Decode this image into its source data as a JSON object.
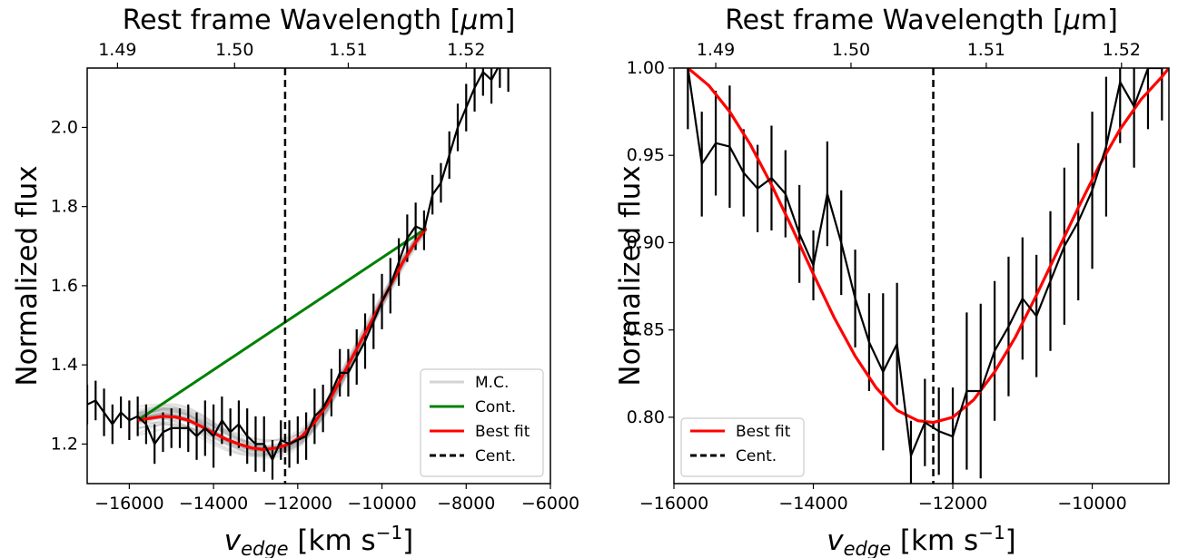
{
  "chart_data": [
    {
      "type": "line",
      "xlabel_main": "v",
      "xlabel_sub": "edge",
      "xlabel_unit": " [km s",
      "xlabel_exp": "−1",
      "xlabel_close": "]",
      "ylabel": "Normalized flux",
      "top_xlabel_text": "Rest frame Wavelength [",
      "top_xlabel_mu": "μ",
      "top_xlabel_end": "m]",
      "xlim": [
        -17000,
        -6000
      ],
      "ylim": [
        1.1,
        2.15
      ],
      "xticks": [
        -16000,
        -14000,
        -12000,
        -10000,
        -8000,
        -6000
      ],
      "xtick_labels": [
        "−16000",
        "−14000",
        "−12000",
        "−10000",
        "−8000",
        "−6000"
      ],
      "yticks": [
        1.2,
        1.4,
        1.6,
        1.8,
        2.0
      ],
      "ytick_labels": [
        "1.2",
        "1.4",
        "1.6",
        "1.8",
        "2.0"
      ],
      "top_xticks": [
        -16280,
        -14300,
        -12320,
        -10340,
        -8360
      ],
      "top_xtick_labels": [
        "1.49",
        "1.50",
        "1.51",
        "1.52"
      ],
      "top_xtick_label_index": [
        0,
        1,
        2,
        3
      ],
      "top_label_positions": [
        -16280,
        -13500,
        -10800,
        -8000
      ],
      "centroid": -12300,
      "data": {
        "x": [
          -17000,
          -16800,
          -16600,
          -16400,
          -16200,
          -16000,
          -15800,
          -15600,
          -15400,
          -15200,
          -15000,
          -14800,
          -14600,
          -14400,
          -14200,
          -14000,
          -13800,
          -13600,
          -13400,
          -13200,
          -13000,
          -12800,
          -12600,
          -12400,
          -12200,
          -12000,
          -11800,
          -11600,
          -11400,
          -11200,
          -11000,
          -10800,
          -10600,
          -10400,
          -10200,
          -10000,
          -9800,
          -9600,
          -9400,
          -9200,
          -9000,
          -8800,
          -8600,
          -8400,
          -8200,
          -8000,
          -7800,
          -7600,
          -7400,
          -7200,
          -7000
        ],
        "y": [
          1.3,
          1.31,
          1.28,
          1.25,
          1.28,
          1.26,
          1.27,
          1.25,
          1.2,
          1.23,
          1.24,
          1.24,
          1.24,
          1.22,
          1.24,
          1.22,
          1.26,
          1.23,
          1.25,
          1.22,
          1.2,
          1.2,
          1.16,
          1.21,
          1.2,
          1.21,
          1.22,
          1.27,
          1.29,
          1.33,
          1.38,
          1.38,
          1.42,
          1.46,
          1.51,
          1.56,
          1.6,
          1.66,
          1.72,
          1.75,
          1.74,
          1.83,
          1.86,
          1.93,
          2.0,
          2.05,
          2.1,
          2.14,
          2.12,
          2.16,
          2.15
        ],
        "err": [
          0.05,
          0.05,
          0.06,
          0.05,
          0.04,
          0.05,
          0.05,
          0.05,
          0.05,
          0.05,
          0.05,
          0.05,
          0.06,
          0.06,
          0.07,
          0.08,
          0.06,
          0.06,
          0.06,
          0.07,
          0.07,
          0.07,
          0.05,
          0.05,
          0.06,
          0.06,
          0.06,
          0.07,
          0.06,
          0.06,
          0.06,
          0.06,
          0.07,
          0.07,
          0.07,
          0.07,
          0.07,
          0.06,
          0.06,
          0.06,
          0.05,
          0.05,
          0.05,
          0.06,
          0.06,
          0.06,
          0.06,
          0.06,
          0.06,
          0.06,
          0.06
        ]
      },
      "continuum": {
        "x": [
          -15800,
          -8950
        ],
        "y": [
          1.26,
          1.745
        ]
      },
      "best_fit": {
        "x": [
          -15800,
          -15500,
          -15200,
          -14900,
          -14600,
          -14300,
          -14000,
          -13700,
          -13400,
          -13100,
          -12800,
          -12500,
          -12200,
          -11900,
          -11600,
          -11300,
          -11000,
          -10700,
          -10400,
          -10100,
          -9800,
          -9500,
          -9200,
          -8950
        ],
        "y": [
          1.26,
          1.265,
          1.27,
          1.268,
          1.26,
          1.245,
          1.228,
          1.212,
          1.2,
          1.19,
          1.186,
          1.19,
          1.2,
          1.22,
          1.255,
          1.3,
          1.36,
          1.42,
          1.48,
          1.54,
          1.6,
          1.66,
          1.71,
          1.745
        ]
      },
      "mc_count": 40,
      "legend": {
        "position": "lower right",
        "entries": [
          {
            "label": "M.C.",
            "color": "#d4d4d4",
            "style": "solid"
          },
          {
            "label": "Cont.",
            "color": "#008000",
            "style": "solid"
          },
          {
            "label": "Best fit",
            "color": "#ff0000",
            "style": "solid"
          },
          {
            "label": "Cent.",
            "color": "#000000",
            "style": "dashed"
          }
        ]
      },
      "colors": {
        "data": "#000000",
        "continuum": "#008000",
        "fit": "#ff0000",
        "mc": "#9a9a9a",
        "centroid": "#000000"
      }
    },
    {
      "type": "line",
      "xlabel_main": "v",
      "xlabel_sub": "edge",
      "xlabel_unit": " [km s",
      "xlabel_exp": "−1",
      "xlabel_close": "]",
      "ylabel": "Normalized flux",
      "top_xlabel_text": "Rest frame Wavelength [",
      "top_xlabel_mu": "μ",
      "top_xlabel_end": "m]",
      "xlim": [
        -16000,
        -8900
      ],
      "ylim": [
        0.762,
        1.0
      ],
      "xticks": [
        -16000,
        -14000,
        -12000,
        -10000
      ],
      "xtick_labels": [
        "−16000",
        "−14000",
        "−12000",
        "−10000"
      ],
      "yticks": [
        0.8,
        0.85,
        0.9,
        0.95,
        1.0
      ],
      "ytick_labels": [
        "0.80",
        "0.85",
        "0.90",
        "0.95",
        "1.00"
      ],
      "top_label_positions": [
        -15400,
        -13460,
        -11520,
        -9580
      ],
      "top_xtick_labels": [
        "1.49",
        "1.50",
        "1.51",
        "1.52"
      ],
      "centroid": -12280,
      "data": {
        "x": [
          -15800,
          -15600,
          -15400,
          -15200,
          -15000,
          -14800,
          -14600,
          -14400,
          -14200,
          -14000,
          -13800,
          -13600,
          -13400,
          -13200,
          -13000,
          -12800,
          -12600,
          -12400,
          -12200,
          -12000,
          -11800,
          -11600,
          -11400,
          -11200,
          -11000,
          -10800,
          -10600,
          -10400,
          -10200,
          -10000,
          -9800,
          -9600,
          -9400,
          -9200,
          -9000
        ],
        "y": [
          1.0,
          0.945,
          0.957,
          0.955,
          0.94,
          0.931,
          0.937,
          0.928,
          0.905,
          0.887,
          0.928,
          0.9,
          0.868,
          0.843,
          0.826,
          0.842,
          0.778,
          0.797,
          0.792,
          0.789,
          0.815,
          0.815,
          0.838,
          0.852,
          0.868,
          0.858,
          0.878,
          0.898,
          0.912,
          0.93,
          0.955,
          0.992,
          0.978,
          1.0,
          1.0
        ],
        "err": [
          0.035,
          0.03,
          0.03,
          0.035,
          0.025,
          0.025,
          0.03,
          0.025,
          0.028,
          0.02,
          0.03,
          0.03,
          0.028,
          0.028,
          0.045,
          0.035,
          0.02,
          0.025,
          0.025,
          0.028,
          0.045,
          0.05,
          0.04,
          0.04,
          0.035,
          0.035,
          0.04,
          0.045,
          0.045,
          0.045,
          0.04,
          0.035,
          0.035,
          0.035,
          0.03
        ]
      },
      "best_fit": {
        "x": [
          -15800,
          -15500,
          -15200,
          -14900,
          -14600,
          -14300,
          -14000,
          -13700,
          -13400,
          -13100,
          -12800,
          -12500,
          -12280,
          -12000,
          -11700,
          -11400,
          -11100,
          -10800,
          -10500,
          -10200,
          -9900,
          -9600,
          -9300,
          -9000,
          -8900
        ],
        "y": [
          1.0,
          0.99,
          0.975,
          0.956,
          0.933,
          0.908,
          0.882,
          0.857,
          0.835,
          0.817,
          0.804,
          0.798,
          0.797,
          0.8,
          0.81,
          0.826,
          0.846,
          0.87,
          0.895,
          0.92,
          0.944,
          0.965,
          0.982,
          0.995,
          1.0
        ]
      },
      "legend": {
        "position": "lower left",
        "entries": [
          {
            "label": "Best fit",
            "color": "#ff0000",
            "style": "solid"
          },
          {
            "label": "Cent.",
            "color": "#000000",
            "style": "dashed"
          }
        ]
      },
      "colors": {
        "data": "#000000",
        "fit": "#ff0000",
        "centroid": "#000000"
      }
    }
  ]
}
